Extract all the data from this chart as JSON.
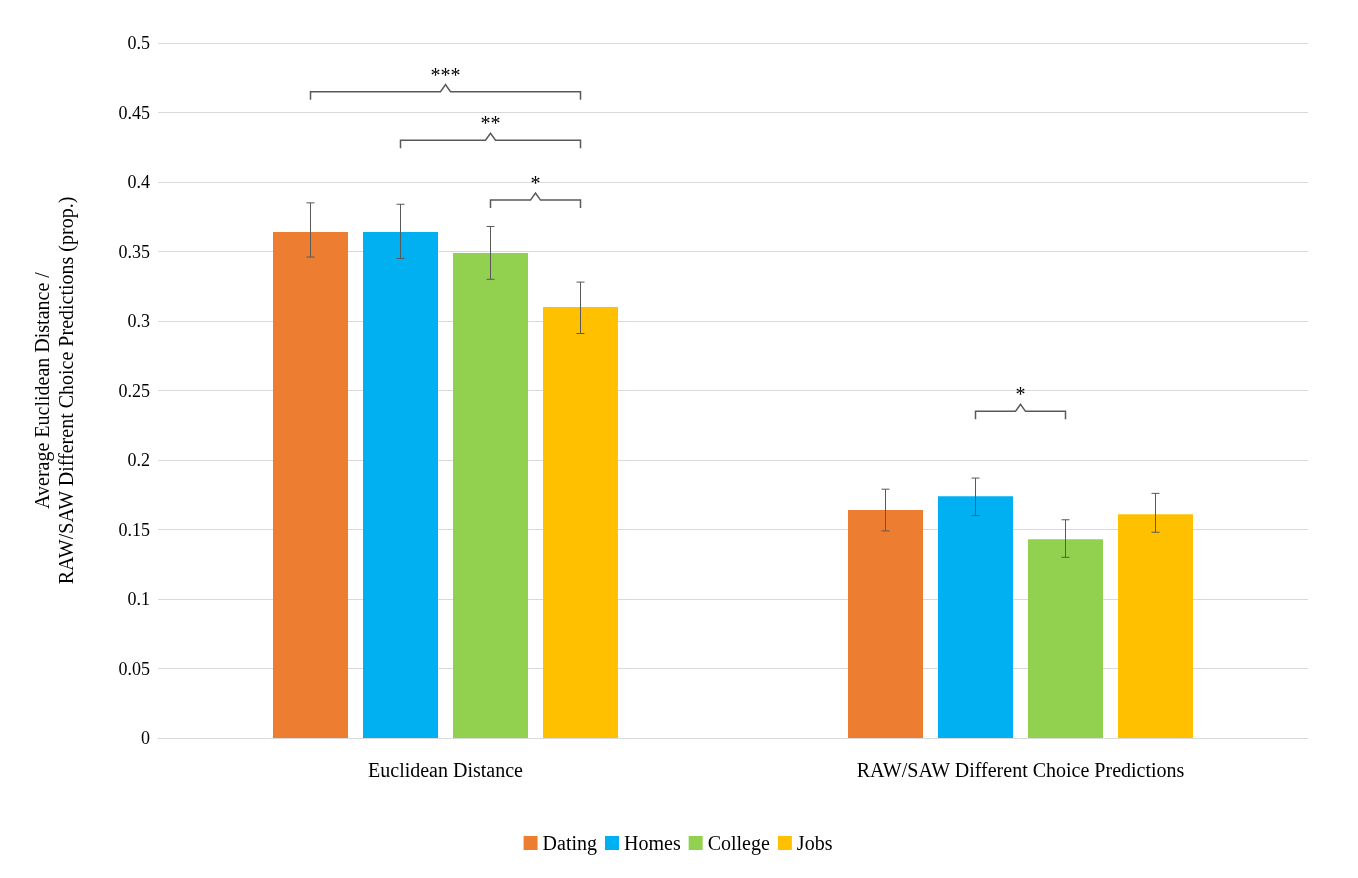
{
  "chart_data": {
    "type": "bar",
    "ylabel": "Average Euclidean Distance /\nRAW/SAW Different Choice Predictions (prop.)",
    "categories": [
      "Euclidean Distance",
      "RAW/SAW Different Choice Predictions"
    ],
    "series": [
      {
        "name": "Dating",
        "color": "#ed7d31",
        "values": [
          0.364,
          0.164
        ],
        "errors": [
          [
            0.346,
            0.385
          ],
          [
            0.149,
            0.179
          ]
        ]
      },
      {
        "name": "Homes",
        "color": "#00b0f0",
        "values": [
          0.364,
          0.174
        ],
        "errors": [
          [
            0.345,
            0.384
          ],
          [
            0.16,
            0.187
          ]
        ]
      },
      {
        "name": "College",
        "color": "#92d050",
        "values": [
          0.349,
          0.143
        ],
        "errors": [
          [
            0.33,
            0.368
          ],
          [
            0.13,
            0.157
          ]
        ]
      },
      {
        "name": "Jobs",
        "color": "#ffc000",
        "values": [
          0.31,
          0.161
        ],
        "errors": [
          [
            0.291,
            0.328
          ],
          [
            0.148,
            0.176
          ]
        ]
      }
    ],
    "ylim": [
      0,
      0.5
    ],
    "yticks": [
      0,
      0.05,
      0.1,
      0.15,
      0.2,
      0.25,
      0.3,
      0.35,
      0.4,
      0.45,
      0.5
    ],
    "grid": "y",
    "legend": "bottom",
    "annotations": [
      "***",
      "**",
      "*",
      "*"
    ]
  }
}
